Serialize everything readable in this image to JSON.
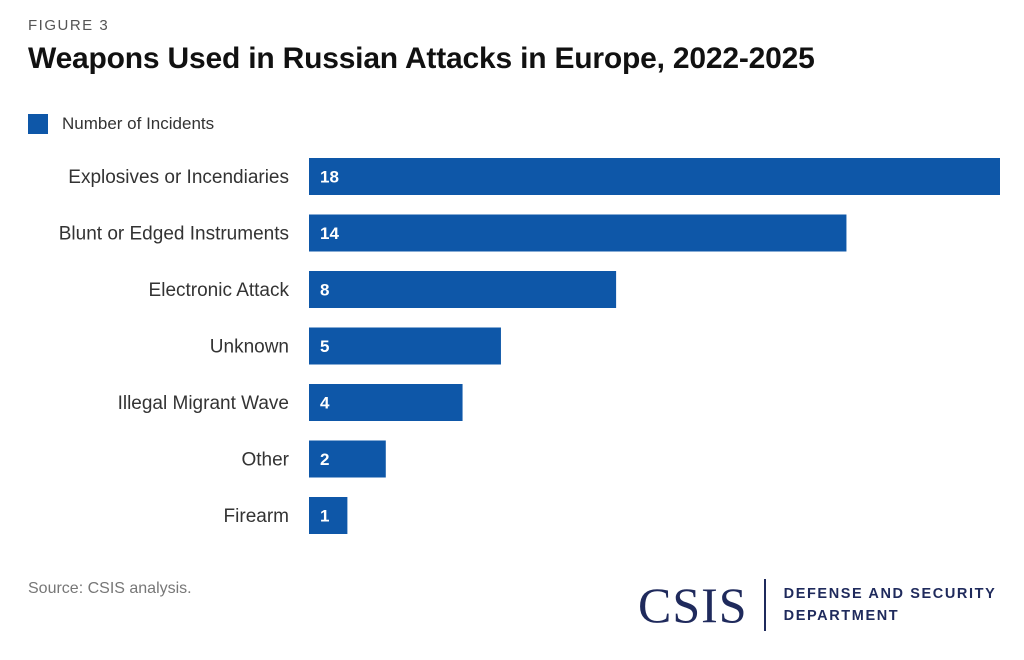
{
  "figure_label": "FIGURE 3",
  "colors": {
    "bar": "#0e57a8",
    "bar_label": "#ffffff",
    "category_label": "#333333",
    "brand": "#1f2a5c"
  },
  "chart_data": {
    "type": "bar",
    "orientation": "horizontal",
    "title": "Weapons Used in Russian Attacks in Europe, 2022-2025",
    "legend": {
      "position": "top-left",
      "entries": [
        "Number of Incidents"
      ]
    },
    "categories": [
      "Explosives or Incendiaries",
      "Blunt or Edged Instruments",
      "Electronic Attack",
      "Unknown",
      "Illegal Migrant Wave",
      "Other",
      "Firearm"
    ],
    "series": [
      {
        "name": "Number of Incidents",
        "values": [
          18,
          14,
          8,
          5,
          4,
          2,
          1
        ]
      }
    ],
    "xlim": [
      0,
      18
    ],
    "grid": false,
    "data_labels": true
  },
  "source": "Source: CSIS analysis.",
  "logo": {
    "word": "CSIS",
    "dept_line1": "DEFENSE AND SECURITY",
    "dept_line2": "DEPARTMENT"
  }
}
